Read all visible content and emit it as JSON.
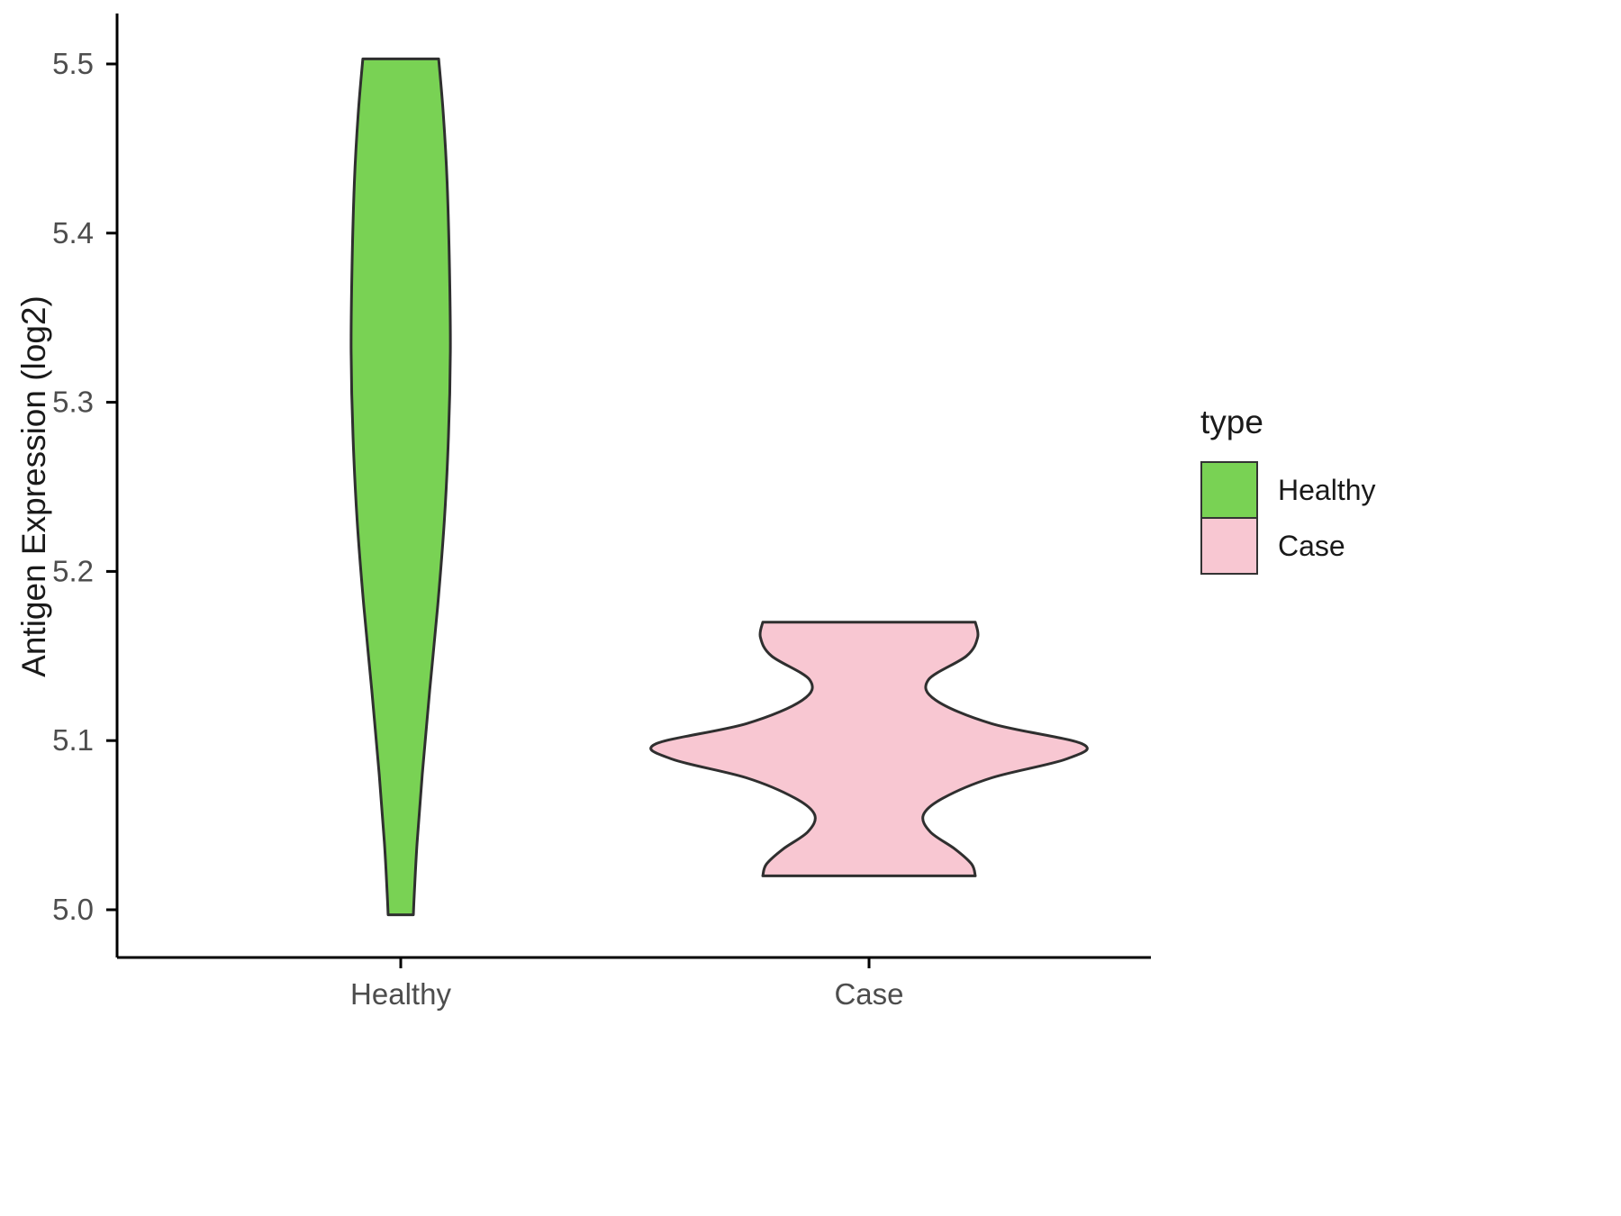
{
  "chart_data": {
    "type": "violin",
    "title": "",
    "xlabel": "",
    "ylabel": "Antigen Expression (log2)",
    "ylim": [
      4.96,
      5.53
    ],
    "grid": false,
    "yticks": [
      "5.0",
      "5.1",
      "5.2",
      "5.3",
      "5.4",
      "5.5"
    ],
    "ytick_values": [
      5.0,
      5.1,
      5.2,
      5.3,
      5.4,
      5.5
    ],
    "categories": [
      "Healthy",
      "Case"
    ],
    "legend": {
      "title": "type",
      "position": "right",
      "entries": [
        {
          "label": "Healthy",
          "color": "#79D254"
        },
        {
          "label": "Case",
          "color": "#F8C7D2"
        }
      ]
    },
    "series": [
      {
        "name": "Healthy",
        "fill": "#79D254",
        "stroke": "#2f2f2f",
        "value_range": [
          4.997,
          5.503
        ],
        "profile": [
          [
            5.503,
            0.081
          ],
          [
            5.47,
            0.091
          ],
          [
            5.43,
            0.099
          ],
          [
            5.38,
            0.104
          ],
          [
            5.33,
            0.106
          ],
          [
            5.28,
            0.102
          ],
          [
            5.23,
            0.093
          ],
          [
            5.18,
            0.079
          ],
          [
            5.13,
            0.062
          ],
          [
            5.08,
            0.046
          ],
          [
            5.04,
            0.035
          ],
          [
            5.01,
            0.029
          ],
          [
            4.997,
            0.027
          ]
        ]
      },
      {
        "name": "Case",
        "fill": "#F8C7D2",
        "stroke": "#2f2f2f",
        "value_range": [
          5.02,
          5.17
        ],
        "profile": [
          [
            5.17,
            0.227
          ],
          [
            5.161,
            0.232
          ],
          [
            5.15,
            0.208
          ],
          [
            5.136,
            0.127
          ],
          [
            5.124,
            0.142
          ],
          [
            5.11,
            0.262
          ],
          [
            5.098,
            0.456
          ],
          [
            5.089,
            0.42
          ],
          [
            5.078,
            0.262
          ],
          [
            5.066,
            0.158
          ],
          [
            5.056,
            0.116
          ],
          [
            5.046,
            0.131
          ],
          [
            5.036,
            0.183
          ],
          [
            5.027,
            0.219
          ],
          [
            5.02,
            0.227
          ]
        ]
      }
    ]
  }
}
